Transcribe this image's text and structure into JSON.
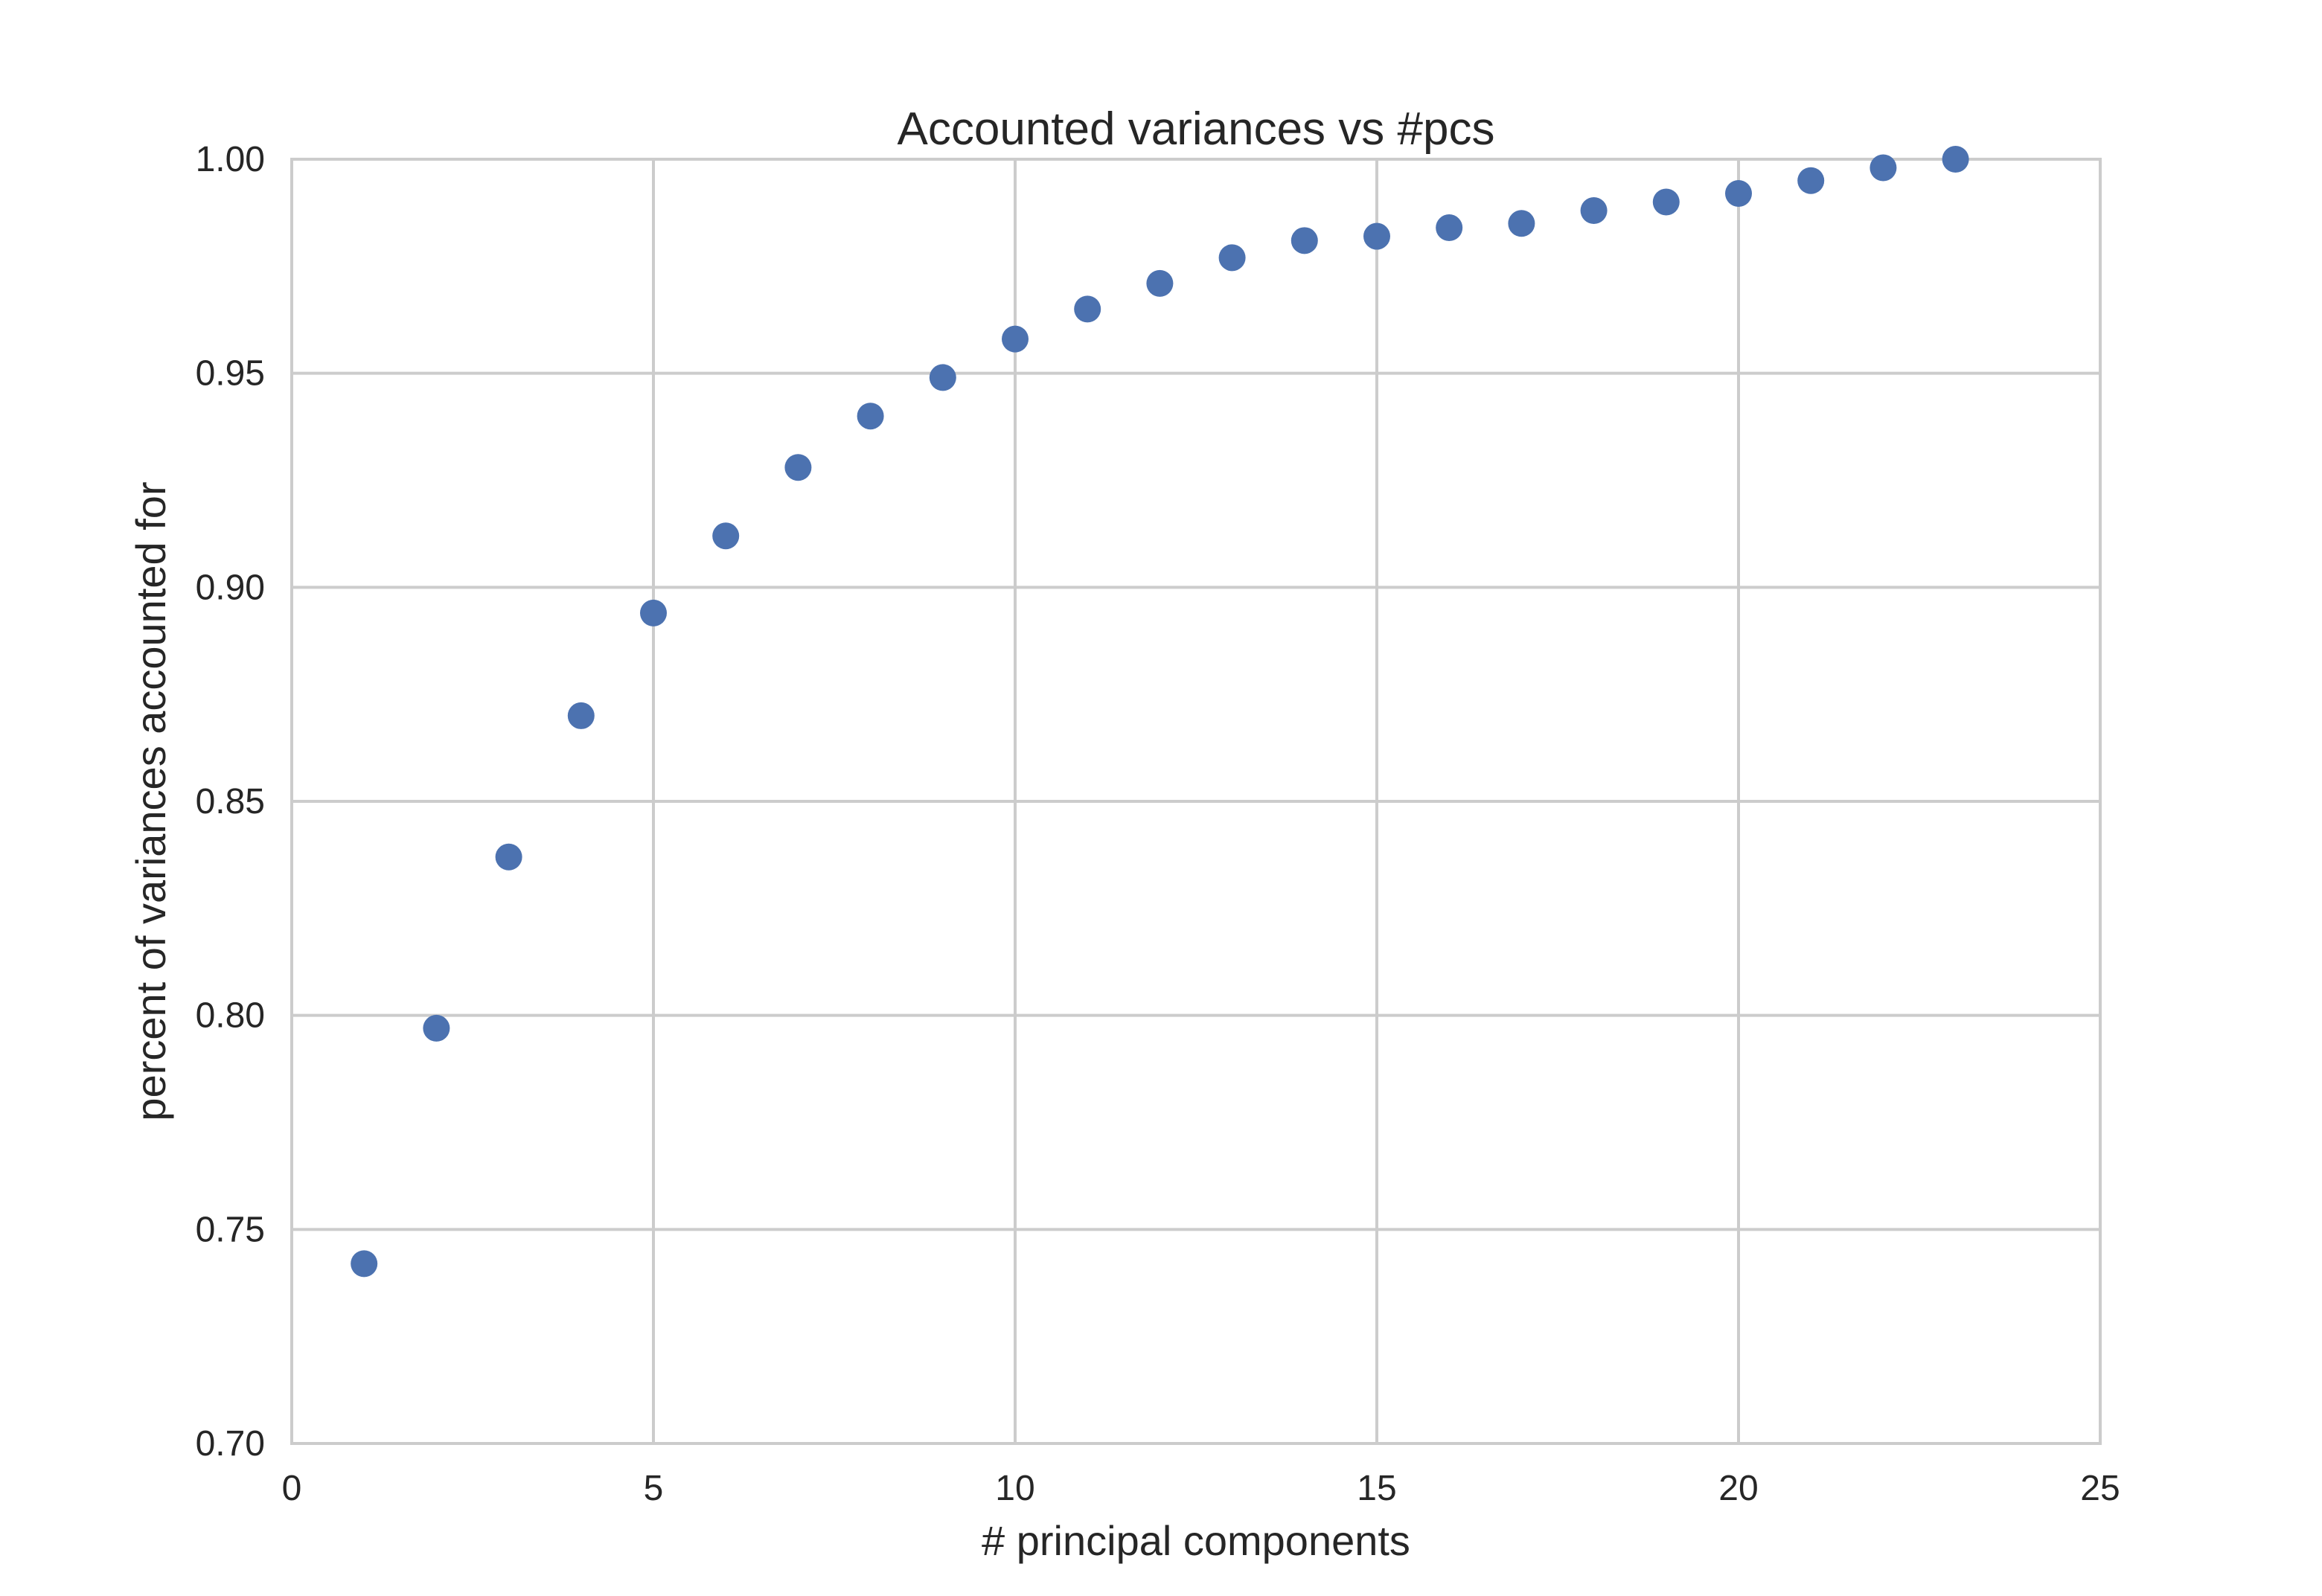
{
  "chart_data": {
    "type": "scatter",
    "title": "Accounted variances vs #pcs",
    "xlabel": "# principal components",
    "ylabel": "percent of variances accounted for",
    "xlim": [
      0,
      25
    ],
    "ylim": [
      0.7,
      1.0
    ],
    "xticks": [
      0,
      5,
      10,
      15,
      20,
      25
    ],
    "xtick_labels": [
      "0",
      "5",
      "10",
      "15",
      "20",
      "25"
    ],
    "yticks": [
      0.7,
      0.75,
      0.8,
      0.85,
      0.9,
      0.95,
      1.0
    ],
    "ytick_labels": [
      "0.70",
      "0.75",
      "0.80",
      "0.85",
      "0.90",
      "0.95",
      "1.00"
    ],
    "grid": true,
    "legend": "none",
    "marker_color": "#4c72b0",
    "grid_color": "#cccccc",
    "series": [
      {
        "x": [
          1,
          2,
          3,
          4,
          5,
          6,
          7,
          8,
          9,
          10,
          11,
          12,
          13,
          14,
          15,
          16,
          17,
          18,
          19,
          20,
          21,
          22,
          23
        ],
        "y": [
          0.742,
          0.797,
          0.837,
          0.87,
          0.894,
          0.912,
          0.928,
          0.94,
          0.949,
          0.958,
          0.965,
          0.971,
          0.977,
          0.981,
          0.982,
          0.984,
          0.985,
          0.988,
          0.99,
          0.992,
          0.995,
          0.998,
          1.0
        ]
      }
    ]
  }
}
